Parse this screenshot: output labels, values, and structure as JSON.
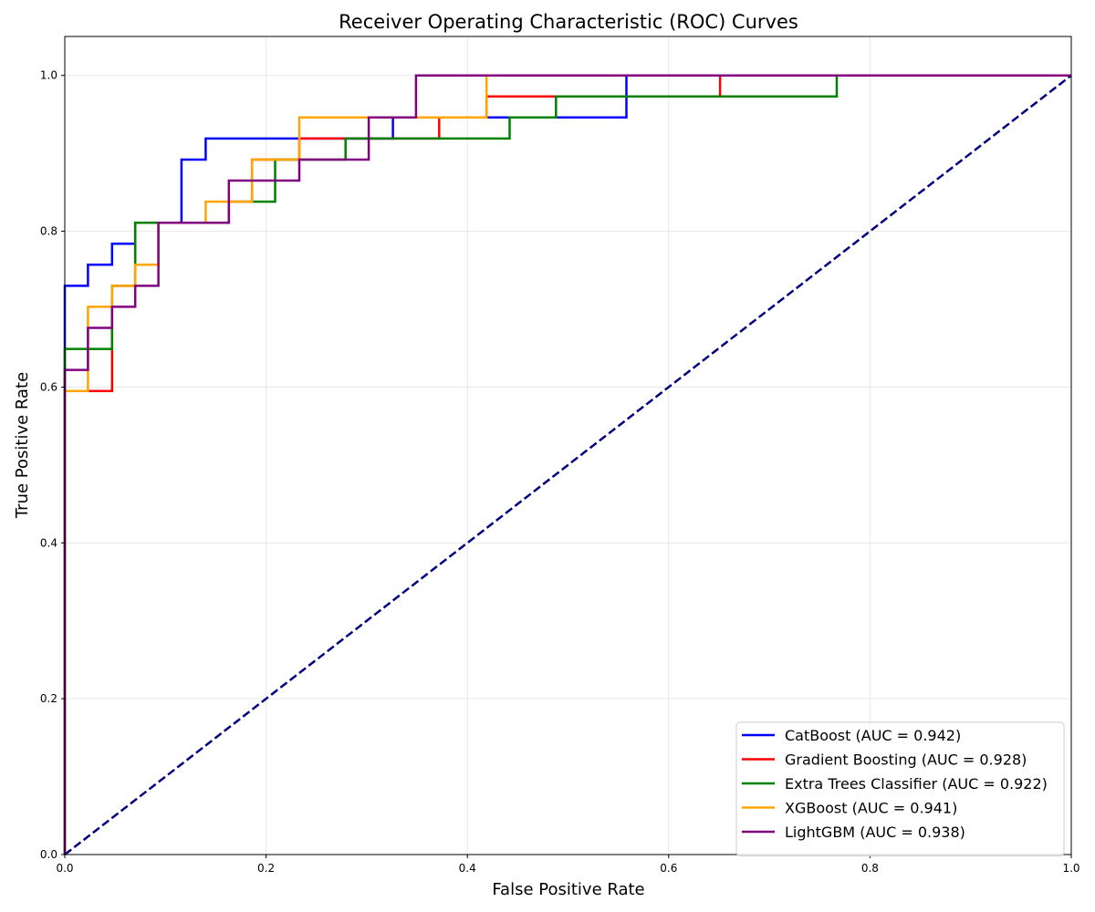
{
  "chart_data": {
    "type": "line",
    "title": "Receiver Operating Characteristic (ROC) Curves",
    "xlabel": "False Positive Rate",
    "ylabel": "True Positive Rate",
    "xlim": [
      0,
      1
    ],
    "ylim": [
      0,
      1.05
    ],
    "x_ticks": [
      0.0,
      0.2,
      0.4,
      0.6,
      0.8,
      1.0
    ],
    "y_ticks": [
      0.0,
      0.2,
      0.4,
      0.6,
      0.8,
      1.0
    ],
    "x_tick_labels": [
      "0.0",
      "0.2",
      "0.4",
      "0.6",
      "0.8",
      "1.0"
    ],
    "y_tick_labels": [
      "0.0",
      "0.2",
      "0.4",
      "0.6",
      "0.8",
      "1.0"
    ],
    "grid": true,
    "legend_position": "lower-right",
    "series": [
      {
        "name": "CatBoost (AUC = 0.942)",
        "color": "#0000ff",
        "x": [
          0,
          0,
          0.023,
          0.023,
          0.047,
          0.047,
          0.07,
          0.07,
          0.116,
          0.116,
          0.14,
          0.14,
          0.326,
          0.326,
          0.419,
          0.419,
          0.558,
          0.558,
          1.0
        ],
        "y": [
          0,
          0.73,
          0.73,
          0.757,
          0.757,
          0.784,
          0.784,
          0.811,
          0.811,
          0.892,
          0.892,
          0.919,
          0.919,
          0.946,
          0.946,
          0.946,
          0.946,
          1.0,
          1.0
        ]
      },
      {
        "name": "Gradient Boosting (AUC = 0.928)",
        "color": "#ff0000",
        "x": [
          0,
          0,
          0.047,
          0.047,
          0.07,
          0.07,
          0.163,
          0.163,
          0.186,
          0.186,
          0.233,
          0.233,
          0.372,
          0.372,
          0.419,
          0.419,
          0.651,
          0.651,
          1.0
        ],
        "y": [
          0,
          0.595,
          0.595,
          0.73,
          0.73,
          0.811,
          0.811,
          0.838,
          0.838,
          0.892,
          0.892,
          0.919,
          0.919,
          0.946,
          0.946,
          0.973,
          0.973,
          1.0,
          1.0
        ]
      },
      {
        "name": "Extra Trees Classifier (AUC = 0.922)",
        "color": "#008000",
        "x": [
          0,
          0,
          0.047,
          0.047,
          0.07,
          0.07,
          0.163,
          0.163,
          0.209,
          0.209,
          0.279,
          0.279,
          0.442,
          0.442,
          0.488,
          0.488,
          0.767,
          0.767,
          1.0
        ],
        "y": [
          0,
          0.649,
          0.649,
          0.73,
          0.73,
          0.811,
          0.811,
          0.838,
          0.838,
          0.892,
          0.892,
          0.919,
          0.919,
          0.946,
          0.946,
          0.973,
          0.973,
          1.0,
          1.0
        ]
      },
      {
        "name": "XGBoost (AUC = 0.941)",
        "color": "#ffa500",
        "x": [
          0,
          0,
          0.023,
          0.023,
          0.047,
          0.047,
          0.07,
          0.07,
          0.093,
          0.093,
          0.14,
          0.14,
          0.186,
          0.186,
          0.233,
          0.233,
          0.419,
          0.419,
          1.0
        ],
        "y": [
          0,
          0.595,
          0.595,
          0.703,
          0.703,
          0.73,
          0.73,
          0.757,
          0.757,
          0.811,
          0.811,
          0.838,
          0.838,
          0.892,
          0.892,
          0.946,
          0.946,
          1.0,
          1.0
        ]
      },
      {
        "name": "LightGBM (AUC = 0.938)",
        "color": "#800080",
        "x": [
          0,
          0,
          0.023,
          0.023,
          0.047,
          0.047,
          0.07,
          0.07,
          0.093,
          0.093,
          0.163,
          0.163,
          0.233,
          0.233,
          0.302,
          0.302,
          0.349,
          0.349,
          1.0
        ],
        "y": [
          0,
          0.622,
          0.622,
          0.676,
          0.676,
          0.703,
          0.703,
          0.73,
          0.73,
          0.811,
          0.811,
          0.865,
          0.865,
          0.892,
          0.892,
          0.946,
          0.946,
          1.0,
          1.0
        ]
      }
    ],
    "reference_line": {
      "x": [
        0,
        1
      ],
      "y": [
        0,
        1
      ],
      "color": "#000080",
      "style": "dashed"
    }
  }
}
